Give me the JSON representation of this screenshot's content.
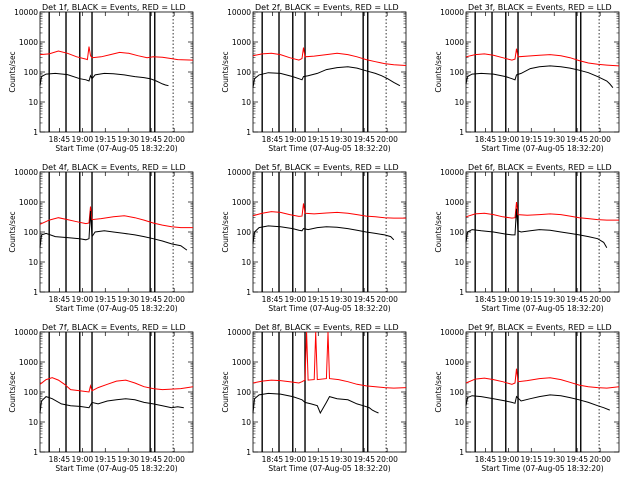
{
  "chart_data": {
    "type": "line",
    "xlabel": "Start Time (07-Aug-05 18:32:20)",
    "ylabel": "Counts/sec",
    "x_tick_labels": [
      "18:45",
      "19:00",
      "19:15",
      "19:30",
      "19:45",
      "20:00"
    ],
    "x_ticks_min": [
      12.67,
      27.67,
      42.67,
      57.67,
      72.67,
      87.67
    ],
    "xlim_min": [
      0,
      100
    ],
    "ylim": [
      1,
      10000
    ],
    "y_scale": "log",
    "y_tick_labels": [
      "1",
      "10",
      "100",
      "1000",
      "10000"
    ],
    "y_tick_values": [
      1,
      10,
      100,
      1000,
      10000
    ],
    "vertical_lines_min": {
      "solid": [
        6,
        17,
        26,
        34,
        72,
        75
      ],
      "dotted": [
        87
      ]
    },
    "series_colors": {
      "events": "#000000",
      "lld": "#ff0000"
    },
    "panels": [
      {
        "title": "Det 1f, BLACK = Events, RED = LLD",
        "events": {
          "x": [
            0,
            1,
            4,
            10,
            18,
            26,
            30,
            32,
            33,
            34,
            36,
            42,
            48,
            55,
            62,
            68,
            72,
            76,
            78,
            80,
            82,
            84
          ],
          "y": [
            35,
            70,
            85,
            90,
            82,
            60,
            55,
            50,
            75,
            60,
            80,
            90,
            88,
            80,
            70,
            65,
            60,
            50,
            45,
            40,
            37,
            35
          ]
        },
        "lld": {
          "x": [
            0,
            6,
            12,
            18,
            24,
            30,
            31,
            32,
            33,
            34,
            40,
            46,
            52,
            58,
            64,
            70,
            74,
            80,
            86,
            90,
            100
          ],
          "y": [
            380,
            400,
            500,
            420,
            320,
            270,
            260,
            700,
            350,
            300,
            320,
            380,
            450,
            420,
            350,
            300,
            320,
            310,
            280,
            260,
            250
          ]
        }
      },
      {
        "title": "Det 2f, BLACK = Events, RED = LLD",
        "events": {
          "x": [
            0,
            1,
            4,
            10,
            18,
            26,
            30,
            32,
            33,
            36,
            42,
            48,
            55,
            62,
            68,
            74,
            80,
            84,
            88,
            92,
            96
          ],
          "y": [
            30,
            60,
            80,
            95,
            90,
            70,
            60,
            55,
            70,
            75,
            90,
            120,
            140,
            150,
            135,
            110,
            90,
            75,
            60,
            45,
            35
          ]
        },
        "lld": {
          "x": [
            0,
            6,
            12,
            18,
            24,
            30,
            32,
            33,
            34,
            40,
            48,
            55,
            62,
            68,
            74,
            80,
            86,
            92,
            100
          ],
          "y": [
            350,
            400,
            420,
            380,
            300,
            250,
            280,
            650,
            320,
            340,
            380,
            420,
            380,
            320,
            260,
            220,
            190,
            175,
            165
          ]
        }
      },
      {
        "title": "Det 3f, BLACK = Events, RED = LLD",
        "events": {
          "x": [
            0,
            1,
            4,
            10,
            18,
            26,
            30,
            32,
            33,
            36,
            42,
            48,
            55,
            62,
            68,
            74,
            80,
            86,
            92,
            94,
            96
          ],
          "y": [
            40,
            70,
            85,
            90,
            85,
            70,
            60,
            55,
            80,
            90,
            130,
            150,
            160,
            150,
            135,
            115,
            95,
            70,
            50,
            40,
            30
          ]
        },
        "lld": {
          "x": [
            0,
            6,
            12,
            18,
            24,
            30,
            32,
            33,
            34,
            40,
            48,
            55,
            62,
            68,
            74,
            80,
            86,
            92,
            100
          ],
          "y": [
            320,
            380,
            400,
            360,
            300,
            250,
            270,
            600,
            320,
            340,
            360,
            380,
            350,
            300,
            240,
            200,
            180,
            170,
            160
          ]
        }
      },
      {
        "title": "Det 4f, BLACK = Events, RED = LLD",
        "events": {
          "x": [
            0,
            1,
            4,
            10,
            18,
            26,
            30,
            32,
            33,
            34,
            36,
            42,
            48,
            55,
            62,
            68,
            74,
            80,
            86,
            92,
            96
          ],
          "y": [
            30,
            80,
            90,
            70,
            65,
            60,
            55,
            60,
            500,
            70,
            100,
            110,
            100,
            90,
            80,
            70,
            60,
            50,
            40,
            35,
            25
          ]
        },
        "lld": {
          "x": [
            0,
            6,
            12,
            18,
            24,
            30,
            32,
            33,
            34,
            40,
            48,
            55,
            62,
            68,
            74,
            80,
            86,
            92,
            100
          ],
          "y": [
            180,
            250,
            300,
            260,
            220,
            190,
            200,
            700,
            260,
            280,
            320,
            350,
            300,
            250,
            200,
            170,
            150,
            140,
            140
          ]
        }
      },
      {
        "title": "Det 5f, BLACK = Events, RED = LLD",
        "events": {
          "x": [
            0,
            1,
            4,
            10,
            18,
            26,
            30,
            32,
            33,
            36,
            42,
            48,
            55,
            62,
            68,
            74,
            80,
            86,
            90,
            92
          ],
          "y": [
            40,
            100,
            140,
            160,
            150,
            130,
            115,
            110,
            130,
            120,
            140,
            150,
            145,
            130,
            115,
            100,
            90,
            80,
            70,
            55
          ]
        },
        "lld": {
          "x": [
            0,
            6,
            12,
            18,
            24,
            30,
            32,
            33,
            34,
            40,
            48,
            55,
            62,
            68,
            74,
            80,
            86,
            92,
            100
          ],
          "y": [
            350,
            420,
            480,
            450,
            380,
            330,
            340,
            900,
            420,
            400,
            430,
            450,
            420,
            380,
            340,
            320,
            300,
            290,
            290
          ]
        }
      },
      {
        "title": "Det 6f, BLACK = Events, RED = LLD",
        "events": {
          "x": [
            0,
            1,
            4,
            10,
            18,
            26,
            30,
            32,
            33,
            34,
            36,
            42,
            48,
            55,
            62,
            68,
            74,
            80,
            86,
            90,
            92
          ],
          "y": [
            45,
            100,
            120,
            110,
            100,
            85,
            80,
            80,
            600,
            110,
            100,
            110,
            120,
            115,
            100,
            90,
            80,
            70,
            60,
            45,
            30
          ]
        },
        "lld": {
          "x": [
            0,
            6,
            12,
            18,
            24,
            30,
            32,
            33,
            34,
            40,
            48,
            55,
            62,
            68,
            74,
            80,
            86,
            92,
            100
          ],
          "y": [
            320,
            400,
            420,
            380,
            320,
            290,
            300,
            1000,
            380,
            360,
            380,
            400,
            380,
            340,
            300,
            280,
            260,
            250,
            250
          ]
        }
      },
      {
        "title": "Det 7f, BLACK = Events, RED = LLD",
        "events": {
          "x": [
            0,
            1,
            4,
            8,
            14,
            20,
            26,
            32,
            34,
            38,
            44,
            50,
            56,
            62,
            68,
            74,
            80,
            86,
            90,
            94
          ],
          "y": [
            20,
            50,
            70,
            60,
            40,
            35,
            33,
            30,
            45,
            40,
            50,
            55,
            60,
            55,
            45,
            40,
            35,
            30,
            32,
            30
          ]
        },
        "lld": {
          "x": [
            0,
            4,
            8,
            12,
            16,
            20,
            26,
            32,
            33,
            34,
            38,
            44,
            50,
            56,
            62,
            68,
            74,
            80,
            86,
            92,
            100
          ],
          "y": [
            180,
            260,
            300,
            250,
            180,
            120,
            110,
            100,
            160,
            110,
            140,
            180,
            230,
            250,
            200,
            150,
            130,
            120,
            125,
            130,
            150
          ]
        }
      },
      {
        "title": "Det 8f, BLACK = Events, RED = LLD",
        "events": {
          "x": [
            0,
            1,
            4,
            10,
            18,
            26,
            30,
            32,
            34,
            38,
            42,
            44,
            48,
            50,
            55,
            62,
            68,
            72,
            76,
            78,
            80,
            82
          ],
          "y": [
            20,
            60,
            80,
            90,
            85,
            70,
            60,
            55,
            45,
            40,
            35,
            20,
            45,
            70,
            60,
            55,
            40,
            35,
            30,
            25,
            22,
            20
          ]
        },
        "lld": {
          "x": [
            0,
            6,
            12,
            18,
            24,
            30,
            32,
            34,
            35,
            36,
            40,
            41,
            42,
            48,
            49,
            50,
            56,
            62,
            68,
            74,
            80,
            86,
            92,
            100
          ],
          "y": [
            200,
            230,
            250,
            240,
            220,
            200,
            220,
            250,
            10000,
            250,
            260,
            10000,
            260,
            280,
            10000,
            280,
            260,
            220,
            180,
            160,
            150,
            140,
            135,
            140
          ]
        }
      },
      {
        "title": "Det 9f, BLACK = Events, RED = LLD",
        "events": {
          "x": [
            0,
            1,
            4,
            10,
            18,
            26,
            30,
            32,
            33,
            36,
            42,
            48,
            55,
            62,
            68,
            74,
            80,
            86,
            90,
            94
          ],
          "y": [
            35,
            65,
            75,
            70,
            60,
            50,
            45,
            42,
            70,
            50,
            60,
            70,
            80,
            75,
            65,
            55,
            45,
            35,
            30,
            25
          ]
        },
        "lld": {
          "x": [
            0,
            6,
            12,
            18,
            24,
            30,
            32,
            33,
            34,
            40,
            48,
            55,
            62,
            68,
            74,
            80,
            86,
            92,
            100
          ],
          "y": [
            200,
            270,
            290,
            260,
            220,
            180,
            200,
            600,
            220,
            240,
            280,
            300,
            260,
            210,
            170,
            150,
            140,
            135,
            150
          ]
        }
      }
    ]
  }
}
